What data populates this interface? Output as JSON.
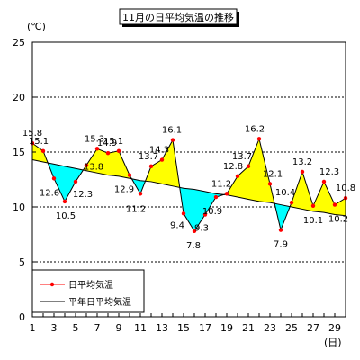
{
  "chart_data": {
    "type": "line",
    "title": "11月の日平均気温の推移",
    "ylabel": "(℃)",
    "xlabel": "(日)",
    "ylim": [
      0,
      25
    ],
    "yticks": [
      0,
      5,
      10,
      15,
      20,
      25
    ],
    "xlim": [
      1,
      30
    ],
    "xticks": [
      1,
      3,
      5,
      7,
      9,
      11,
      13,
      15,
      17,
      19,
      21,
      23,
      25,
      27,
      29
    ],
    "grid": "horizontal-dashed",
    "legend_position": "bottom-left",
    "x": [
      1,
      2,
      3,
      4,
      5,
      6,
      7,
      8,
      9,
      10,
      11,
      12,
      13,
      14,
      15,
      16,
      17,
      18,
      19,
      20,
      21,
      22,
      23,
      24,
      25,
      26,
      27,
      28,
      29,
      30
    ],
    "series": [
      {
        "name": "日平均気温",
        "values": [
          15.8,
          15.1,
          12.6,
          10.5,
          12.3,
          13.8,
          15.3,
          14.9,
          15.1,
          12.9,
          11.2,
          13.7,
          14.3,
          16.1,
          9.4,
          7.8,
          9.3,
          10.9,
          11.2,
          12.8,
          13.7,
          16.2,
          12.1,
          7.9,
          10.4,
          13.2,
          10.1,
          12.3,
          10.2,
          10.8
        ],
        "color": "#ff0000"
      },
      {
        "name": "平年日平均気温",
        "values": [
          14.3,
          14.1,
          13.9,
          13.7,
          13.5,
          13.3,
          13.1,
          12.9,
          12.8,
          12.6,
          12.4,
          12.3,
          12.1,
          11.9,
          11.7,
          11.6,
          11.4,
          11.2,
          11.1,
          10.9,
          10.7,
          10.5,
          10.4,
          10.2,
          10.0,
          9.8,
          9.6,
          9.5,
          9.3,
          9.2
        ],
        "color": "#000000"
      }
    ],
    "fill_above_color": "#ffff00",
    "fill_below_color": "#00ffff"
  }
}
